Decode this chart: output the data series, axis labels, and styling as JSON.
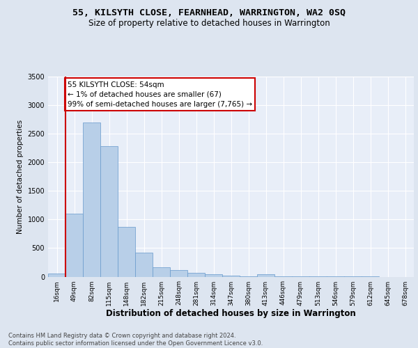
{
  "title": "55, KILSYTH CLOSE, FEARNHEAD, WARRINGTON, WA2 0SQ",
  "subtitle": "Size of property relative to detached houses in Warrington",
  "xlabel": "Distribution of detached houses by size in Warrington",
  "ylabel": "Number of detached properties",
  "categories": [
    "16sqm",
    "49sqm",
    "82sqm",
    "115sqm",
    "148sqm",
    "182sqm",
    "215sqm",
    "248sqm",
    "281sqm",
    "314sqm",
    "347sqm",
    "380sqm",
    "413sqm",
    "446sqm",
    "479sqm",
    "513sqm",
    "546sqm",
    "579sqm",
    "612sqm",
    "645sqm",
    "678sqm"
  ],
  "values": [
    55,
    1100,
    2700,
    2280,
    870,
    415,
    170,
    110,
    70,
    42,
    22,
    10,
    48,
    7,
    4,
    3,
    2,
    1,
    1,
    0,
    0
  ],
  "bar_color": "#b8cfe8",
  "bar_edge_color": "#6699cc",
  "vline_x": 0.5,
  "vline_color": "#cc0000",
  "annotation_text": "55 KILSYTH CLOSE: 54sqm\n← 1% of detached houses are smaller (67)\n99% of semi-detached houses are larger (7,765) →",
  "annotation_box_facecolor": "#ffffff",
  "annotation_box_edgecolor": "#cc0000",
  "ylim": [
    0,
    3500
  ],
  "yticks": [
    0,
    500,
    1000,
    1500,
    2000,
    2500,
    3000,
    3500
  ],
  "bg_color": "#dde5f0",
  "plot_bg_color": "#e8eef8",
  "grid_color": "#ffffff",
  "footer_text": "Contains HM Land Registry data © Crown copyright and database right 2024.\nContains public sector information licensed under the Open Government Licence v3.0."
}
